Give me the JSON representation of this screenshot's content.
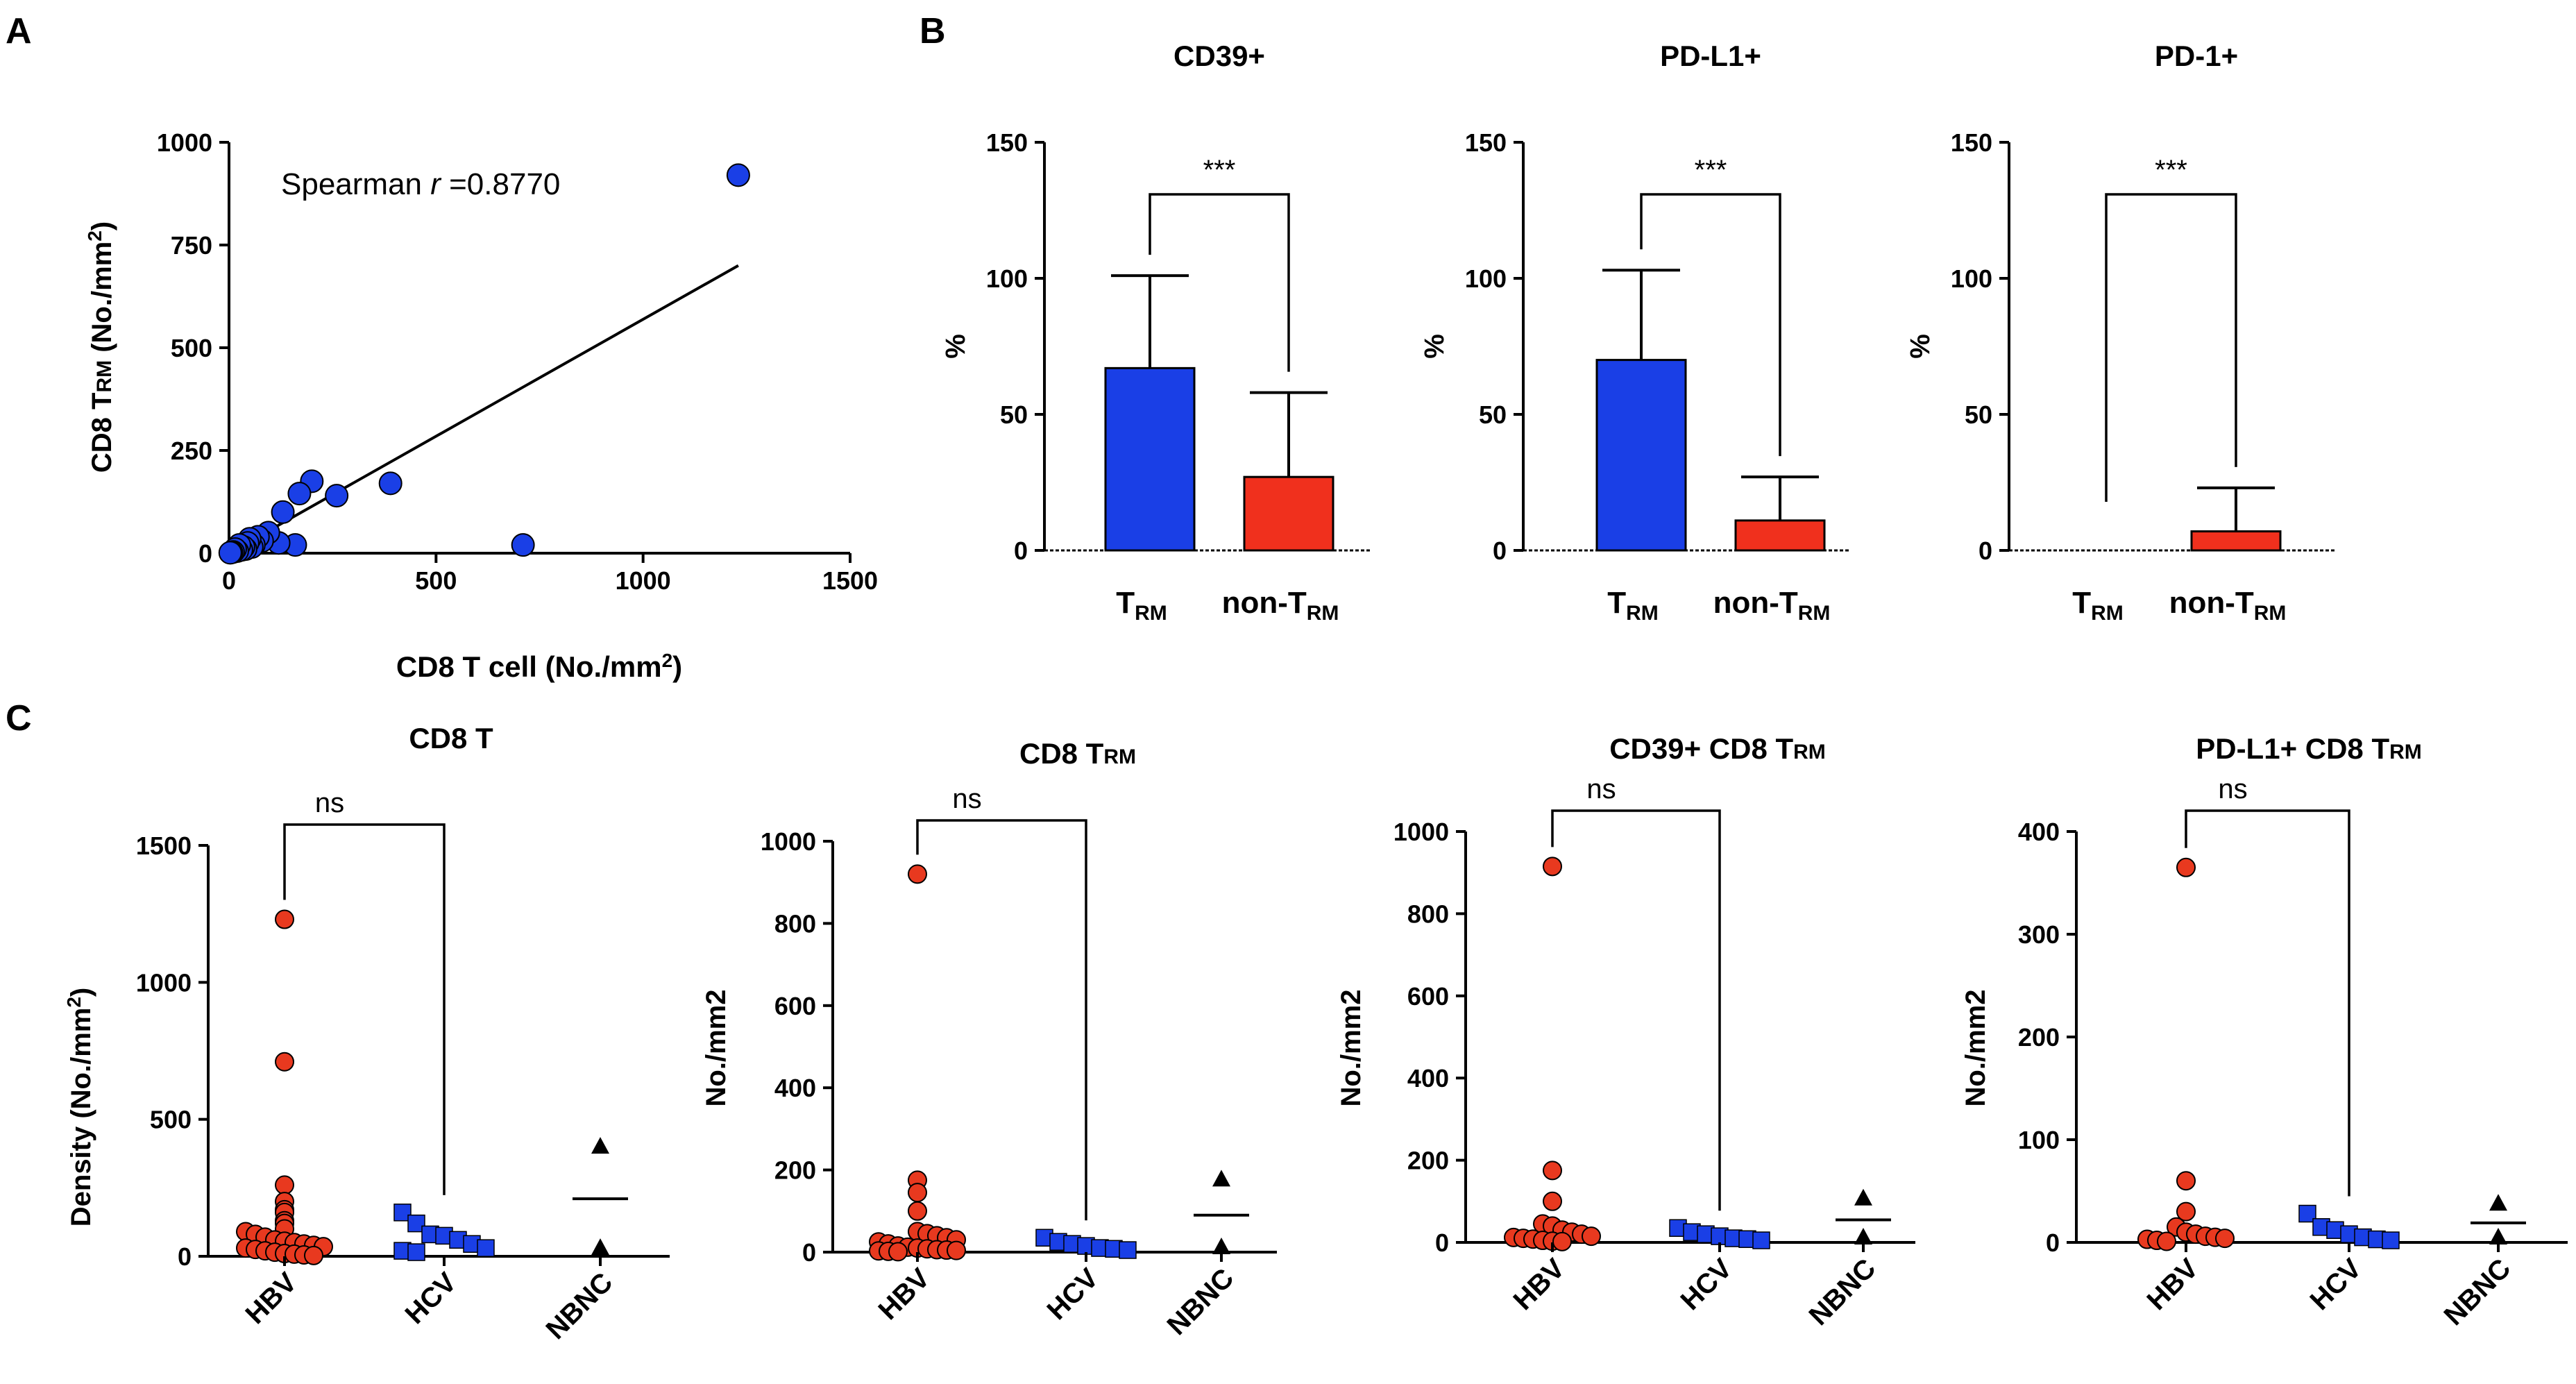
{
  "panels": {
    "a": "A",
    "b": "B",
    "c": "C"
  },
  "colors": {
    "blue": "#1a3fe6",
    "red": "#f0301d",
    "marker_red": "#e8391f",
    "black": "#000000"
  },
  "chart_data": [
    {
      "type": "scatter",
      "id": "panel-a",
      "title": "",
      "xlabel": "CD8 T cell (No./mm2)",
      "ylabel": "CD8 TRM (No./mm2)",
      "xlim": [
        0,
        1500
      ],
      "ylim": [
        0,
        1000
      ],
      "xticks": [
        "0",
        "500",
        "1000",
        "1500"
      ],
      "yticks": [
        "0",
        "250",
        "500",
        "750",
        "1000"
      ],
      "annotation": {
        "prefix": "Spearman ",
        "italic": "r",
        "suffix": " =0.8770"
      },
      "fit_line": {
        "x": [
          0,
          1230
        ],
        "y": [
          0,
          700
        ]
      },
      "x": [
        1230,
        710,
        390,
        260,
        200,
        170,
        160,
        130,
        120,
        95,
        80,
        70,
        60,
        55,
        50,
        45,
        40,
        35,
        30,
        25,
        20,
        15,
        10,
        6,
        3
      ],
      "y": [
        920,
        20,
        170,
        140,
        175,
        145,
        20,
        100,
        25,
        50,
        30,
        40,
        20,
        15,
        35,
        25,
        10,
        15,
        8,
        20,
        5,
        10,
        3,
        2,
        1
      ]
    },
    {
      "type": "bar",
      "id": "cd39",
      "title": "CD39+",
      "ylabel": "%",
      "ylim": [
        0,
        150
      ],
      "yticks": [
        "0",
        "50",
        "100",
        "150"
      ],
      "categories": [
        "TRM",
        "non-TRM"
      ],
      "values": [
        67,
        27
      ],
      "errors": [
        34,
        31
      ],
      "significance": "***"
    },
    {
      "type": "bar",
      "id": "pdl1",
      "title": "PD-L1+",
      "ylabel": "%",
      "ylim": [
        0,
        150
      ],
      "yticks": [
        "0",
        "50",
        "100",
        "150"
      ],
      "categories": [
        "TRM",
        "non-TRM"
      ],
      "values": [
        70,
        11
      ],
      "errors": [
        33,
        16
      ],
      "significance": "***"
    },
    {
      "type": "bar",
      "id": "pd1",
      "title": "PD-1+",
      "ylabel": "%",
      "ylim": [
        0,
        150
      ],
      "yticks": [
        "0",
        "50",
        "100",
        "150"
      ],
      "categories": [
        "TRM",
        "non-TRM"
      ],
      "values": [
        0,
        7
      ],
      "errors": [
        0,
        16
      ],
      "significance": "***"
    },
    {
      "type": "scatter",
      "id": "c1",
      "title": "CD8 T",
      "ylabel": "Density (No./mm2)",
      "ylim": [
        0,
        1500
      ],
      "yticks": [
        "0",
        "500",
        "1000",
        "1500"
      ],
      "categories": [
        "HBV",
        "HCV",
        "NBNC"
      ],
      "significance": "ns",
      "series": [
        {
          "name": "HBV",
          "values": [
            1230,
            710,
            260,
            200,
            170,
            160,
            130,
            120,
            100,
            90,
            80,
            70,
            60,
            55,
            50,
            45,
            40,
            35,
            30,
            25,
            20,
            15,
            10,
            8,
            5,
            3
          ]
        },
        {
          "name": "HCV",
          "values": [
            160,
            120,
            80,
            75,
            60,
            45,
            30,
            20,
            15
          ]
        },
        {
          "name": "NBNC",
          "values": [
            390,
            20
          ],
          "mean": 210
        }
      ]
    },
    {
      "type": "scatter",
      "id": "c2",
      "title": "CD8 TRM",
      "ylabel": "No./mm2",
      "ylim": [
        0,
        1000
      ],
      "yticks": [
        "0",
        "200",
        "400",
        "600",
        "800",
        "1000"
      ],
      "categories": [
        "HBV",
        "HCV",
        "NBNC"
      ],
      "significance": "ns",
      "series": [
        {
          "name": "HBV",
          "values": [
            920,
            175,
            145,
            100,
            50,
            45,
            40,
            35,
            30,
            25,
            20,
            15,
            12,
            10,
            8,
            6,
            5,
            4,
            3,
            2,
            1
          ]
        },
        {
          "name": "HCV",
          "values": [
            35,
            25,
            20,
            15,
            10,
            8,
            5
          ]
        },
        {
          "name": "NBNC",
          "values": [
            170,
            5
          ],
          "mean": 90
        }
      ]
    },
    {
      "type": "scatter",
      "id": "c3",
      "title": "CD39+ CD8 TRM",
      "ylabel": "No./mm2",
      "ylim": [
        0,
        1000
      ],
      "yticks": [
        "0",
        "200",
        "400",
        "600",
        "800",
        "1000"
      ],
      "categories": [
        "HBV",
        "HCV",
        "NBNC"
      ],
      "significance": "ns",
      "series": [
        {
          "name": "HBV",
          "values": [
            915,
            175,
            100,
            45,
            40,
            30,
            25,
            20,
            15,
            12,
            10,
            8,
            5,
            3,
            2
          ]
        },
        {
          "name": "HCV",
          "values": [
            35,
            25,
            20,
            15,
            10,
            8,
            5
          ]
        },
        {
          "name": "NBNC",
          "values": [
            100,
            5
          ],
          "mean": 55
        }
      ]
    },
    {
      "type": "scatter",
      "id": "c4",
      "title": "PD-L1+ CD8 TRM",
      "ylabel": "No./mm2",
      "ylim": [
        0,
        400
      ],
      "yticks": [
        "0",
        "100",
        "200",
        "300",
        "400"
      ],
      "categories": [
        "HBV",
        "HCV",
        "NBNC"
      ],
      "significance": "ns",
      "series": [
        {
          "name": "HBV",
          "values": [
            365,
            60,
            30,
            15,
            10,
            8,
            6,
            5,
            4,
            3,
            2,
            1
          ]
        },
        {
          "name": "HCV",
          "values": [
            28,
            15,
            12,
            8,
            5,
            3,
            2
          ]
        },
        {
          "name": "NBNC",
          "values": [
            35,
            2
          ],
          "mean": 19
        }
      ]
    }
  ]
}
